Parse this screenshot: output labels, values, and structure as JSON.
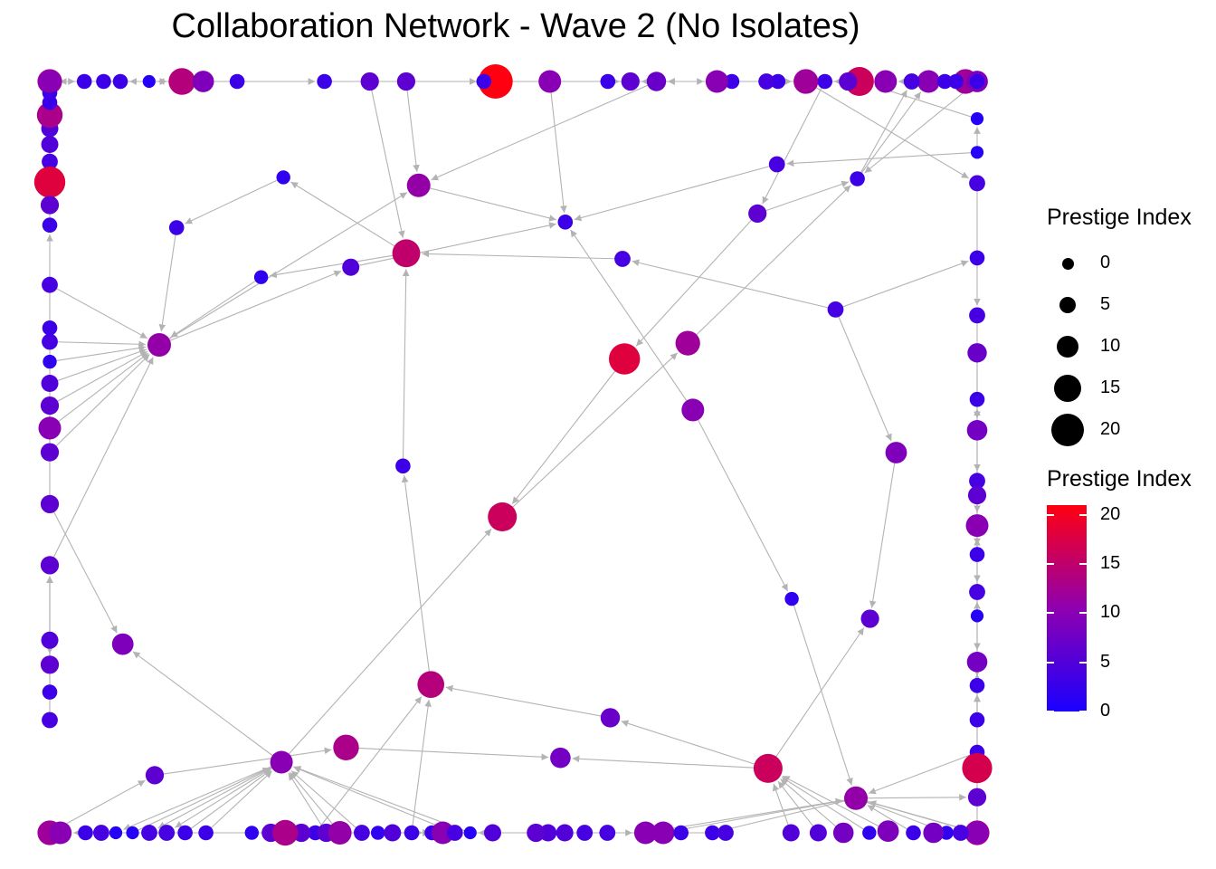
{
  "title": "Collaboration Network - Wave 2 (No Isolates)",
  "legend": {
    "size_title": "Prestige Index",
    "color_title": "Prestige Index",
    "size_entries": [
      0,
      5,
      10,
      15,
      20
    ],
    "color_ticks": [
      20,
      15,
      10,
      5,
      0
    ],
    "color_low": "#1a00ff",
    "color_mid": "#8f00b0",
    "color_high": "#ff0010"
  },
  "network": {
    "edge_color": "#b3b3b3",
    "prestige_range": [
      0,
      21
    ],
    "nodes": [
      {
        "id": 1,
        "p": 8
      },
      {
        "id": 2,
        "p": 10
      },
      {
        "id": 3,
        "p": 7
      },
      {
        "id": 4,
        "p": 1
      },
      {
        "id": 5,
        "p": 8
      },
      {
        "id": 6,
        "p": 5
      },
      {
        "id": 7,
        "p": 9
      },
      {
        "id": 8,
        "p": 5
      },
      {
        "id": 9,
        "p": 2
      },
      {
        "id": 10,
        "p": 16
      },
      {
        "id": 11,
        "p": 7
      },
      {
        "id": 12,
        "p": 6
      },
      {
        "id": 13,
        "p": 3
      },
      {
        "id": 14,
        "p": 14
      },
      {
        "id": 15,
        "p": 3
      },
      {
        "id": 16,
        "p": 9
      },
      {
        "id": 17,
        "p": 4
      },
      {
        "id": 18,
        "p": 13
      },
      {
        "id": 19,
        "p": 3
      },
      {
        "id": 20,
        "p": 4
      },
      {
        "id": 21,
        "p": 6
      },
      {
        "id": 22,
        "p": 8
      },
      {
        "id": 23,
        "p": 3
      },
      {
        "id": 24,
        "p": 3
      },
      {
        "id": 25,
        "p": 15
      },
      {
        "id": 26,
        "p": 6
      },
      {
        "id": 27,
        "p": 5
      },
      {
        "id": 28,
        "p": 2
      },
      {
        "id": 29,
        "p": 4
      },
      {
        "id": 30,
        "p": 3
      },
      {
        "id": 31,
        "p": 6
      },
      {
        "id": 32,
        "p": 4
      },
      {
        "id": 33,
        "p": 10
      },
      {
        "id": 34,
        "p": 6
      },
      {
        "id": 35,
        "p": 2
      },
      {
        "id": 36,
        "p": 6
      },
      {
        "id": 37,
        "p": 6
      },
      {
        "id": 38,
        "p": 3
      },
      {
        "id": 39,
        "p": 11
      },
      {
        "id": 40,
        "p": 2
      },
      {
        "id": 41,
        "p": 5
      },
      {
        "id": 42,
        "p": 4
      },
      {
        "id": 43,
        "p": 6
      },
      {
        "id": 44,
        "p": 11
      },
      {
        "id": 45,
        "p": 5
      },
      {
        "id": 46,
        "p": 10
      },
      {
        "id": 47,
        "p": 1
      },
      {
        "id": 48,
        "p": 1
      },
      {
        "id": 49,
        "p": 4
      },
      {
        "id": 50,
        "p": 3
      },
      {
        "id": 51,
        "p": 16
      },
      {
        "id": 52,
        "p": 7
      },
      {
        "id": 53,
        "p": 3
      },
      {
        "id": 54,
        "p": 2
      },
      {
        "id": 55,
        "p": 3
      },
      {
        "id": 56,
        "p": 8
      },
      {
        "id": 57,
        "p": 3
      },
      {
        "id": 58,
        "p": 10
      },
      {
        "id": 59,
        "p": 11
      },
      {
        "id": 60,
        "p": 10
      },
      {
        "id": 61,
        "p": 10
      },
      {
        "id": 62,
        "p": 2
      },
      {
        "id": 63,
        "p": 10
      },
      {
        "id": 64,
        "p": 3
      },
      {
        "id": 65,
        "p": 3
      },
      {
        "id": 66,
        "p": 6
      },
      {
        "id": 67,
        "p": 5
      },
      {
        "id": 68,
        "p": 5
      },
      {
        "id": 69,
        "p": 6
      },
      {
        "id": 70,
        "p": 2
      },
      {
        "id": 71,
        "p": 12
      },
      {
        "id": 72,
        "p": 6
      },
      {
        "id": 73,
        "p": 3
      },
      {
        "id": 74,
        "p": 5
      },
      {
        "id": 75,
        "p": 8
      },
      {
        "id": 76,
        "p": 4
      },
      {
        "id": 77,
        "p": 2
      },
      {
        "id": 78,
        "p": 13
      },
      {
        "id": 79,
        "p": 6
      },
      {
        "id": 80,
        "p": 3
      },
      {
        "id": 81,
        "p": 4
      },
      {
        "id": 82,
        "p": 3
      },
      {
        "id": 83,
        "p": 5
      },
      {
        "id": 84,
        "p": 5
      },
      {
        "id": 85,
        "p": 13
      },
      {
        "id": 86,
        "p": 4
      },
      {
        "id": 87,
        "p": 18
      },
      {
        "id": 88,
        "p": 6
      },
      {
        "id": 89,
        "p": 4
      },
      {
        "id": 90,
        "p": 1
      },
      {
        "id": 91,
        "p": 5
      },
      {
        "id": 92,
        "p": 4
      },
      {
        "id": 93,
        "p": 5
      },
      {
        "id": 94,
        "p": 6
      },
      {
        "id": 95,
        "p": 3
      },
      {
        "id": 96,
        "p": 10
      },
      {
        "id": 97,
        "p": 4
      },
      {
        "id": 98,
        "p": 1
      },
      {
        "id": 99,
        "p": 4
      },
      {
        "id": 100,
        "p": 3
      },
      {
        "id": 101,
        "p": 11
      },
      {
        "id": 102,
        "p": 4
      },
      {
        "id": 103,
        "p": 4
      },
      {
        "id": 104,
        "p": 1
      },
      {
        "id": 105,
        "p": 9
      },
      {
        "id": 106,
        "p": 16
      },
      {
        "id": 107,
        "p": 6
      },
      {
        "id": 108,
        "p": 3
      },
      {
        "id": 109,
        "p": 6
      },
      {
        "id": 110,
        "p": 18
      },
      {
        "id": 111,
        "p": 3
      },
      {
        "id": 112,
        "p": 3
      },
      {
        "id": 113,
        "p": 12
      },
      {
        "id": 114,
        "p": 10
      },
      {
        "id": 115,
        "p": 4
      },
      {
        "id": 116,
        "p": 3
      },
      {
        "id": 117,
        "p": 7
      },
      {
        "id": 118,
        "p": 12
      },
      {
        "id": 119,
        "p": 10
      },
      {
        "id": 120,
        "p": 6
      },
      {
        "id": 121,
        "p": 3
      },
      {
        "id": 122,
        "p": 3
      },
      {
        "id": 123,
        "p": 12
      },
      {
        "id": 124,
        "p": 4
      },
      {
        "id": 125,
        "p": 3
      },
      {
        "id": 126,
        "p": 2
      },
      {
        "id": 127,
        "p": 3
      },
      {
        "id": 128,
        "p": 3
      },
      {
        "id": 129,
        "p": 14
      },
      {
        "id": 130,
        "p": 3
      },
      {
        "id": 131,
        "p": 3
      },
      {
        "id": 132,
        "p": 10
      },
      {
        "id": 133,
        "p": 3
      },
      {
        "id": 134,
        "p": 3
      },
      {
        "id": 135,
        "p": 21
      },
      {
        "id": 136,
        "p": 6
      },
      {
        "id": 137,
        "p": 3
      },
      {
        "id": 138,
        "p": 3
      },
      {
        "id": 139,
        "p": 12
      },
      {
        "id": 140,
        "p": 4
      },
      {
        "id": 141,
        "p": 4
      },
      {
        "id": 142,
        "p": 4
      },
      {
        "id": 143,
        "p": 4
      },
      {
        "id": 144,
        "p": 3
      },
      {
        "id": 145,
        "p": 3
      },
      {
        "id": 146,
        "p": 8
      },
      {
        "id": 147,
        "p": 17
      },
      {
        "id": 148,
        "p": 10
      },
      {
        "id": 149,
        "p": 4
      },
      {
        "id": 150,
        "p": 6
      },
      {
        "id": 151,
        "p": 3
      },
      {
        "id": 152,
        "p": 3
      },
      {
        "id": 153,
        "p": 12
      },
      {
        "id": 154,
        "p": 10
      },
      {
        "id": 155,
        "p": 4
      },
      {
        "id": 156,
        "p": 3
      },
      {
        "id": 157,
        "p": 3
      },
      {
        "id": 158,
        "p": 10
      },
      {
        "id": 159,
        "p": 3
      },
      {
        "id": 160,
        "p": 9
      },
      {
        "id": 161,
        "p": 3
      },
      {
        "id": 162,
        "p": 9
      },
      {
        "id": 163,
        "p": 1
      }
    ],
    "edges": [
      [
        1,
        2
      ],
      [
        4,
        2
      ],
      [
        5,
        10
      ],
      [
        6,
        10
      ],
      [
        7,
        10
      ],
      [
        9,
        10
      ],
      [
        10,
        12
      ],
      [
        10,
        22
      ],
      [
        10,
        11
      ],
      [
        11,
        14
      ],
      [
        13,
        14
      ],
      [
        14,
        23
      ],
      [
        17,
        16
      ],
      [
        17,
        20
      ],
      [
        17,
        15
      ],
      [
        19,
        26
      ],
      [
        20,
        25
      ],
      [
        21,
        25
      ],
      [
        23,
        25
      ],
      [
        24,
        14
      ],
      [
        25,
        35
      ],
      [
        25,
        28
      ],
      [
        26,
        18
      ],
      [
        27,
        31
      ],
      [
        30,
        34
      ],
      [
        31,
        34
      ],
      [
        32,
        34
      ],
      [
        33,
        39
      ],
      [
        33,
        36
      ],
      [
        33,
        37
      ],
      [
        34,
        39
      ],
      [
        35,
        38
      ],
      [
        36,
        39
      ],
      [
        37,
        39
      ],
      [
        38,
        39
      ],
      [
        39,
        45
      ],
      [
        39,
        44
      ],
      [
        40,
        39
      ],
      [
        41,
        39
      ],
      [
        42,
        39
      ],
      [
        44,
        50
      ],
      [
        45,
        50
      ],
      [
        46,
        50
      ],
      [
        48,
        49
      ],
      [
        48,
        47
      ],
      [
        49,
        50
      ],
      [
        52,
        44
      ],
      [
        53,
        52
      ],
      [
        54,
        55
      ],
      [
        55,
        58
      ],
      [
        56,
        59
      ],
      [
        57,
        59
      ],
      [
        58,
        59
      ],
      [
        59,
        61
      ],
      [
        60,
        62
      ],
      [
        61,
        63
      ],
      [
        62,
        59
      ],
      [
        64,
        59
      ],
      [
        65,
        59
      ],
      [
        66,
        63
      ],
      [
        67,
        63
      ],
      [
        59,
        68
      ],
      [
        59,
        70
      ],
      [
        59,
        71
      ],
      [
        59,
        72
      ],
      [
        59,
        73
      ],
      [
        70,
        75
      ],
      [
        73,
        74
      ],
      [
        76,
        74
      ],
      [
        77,
        63
      ],
      [
        78,
        63
      ],
      [
        79,
        63
      ],
      [
        80,
        78
      ],
      [
        81,
        78
      ],
      [
        82,
        79
      ],
      [
        85,
        86
      ],
      [
        85,
        83
      ],
      [
        84,
        83
      ],
      [
        86,
        87
      ],
      [
        87,
        83
      ],
      [
        87,
        88
      ],
      [
        89,
        90
      ],
      [
        90,
        96
      ],
      [
        91,
        92
      ],
      [
        92,
        96
      ],
      [
        93,
        94
      ],
      [
        94,
        96
      ],
      [
        95,
        96
      ],
      [
        97,
        96
      ],
      [
        98,
        96
      ],
      [
        96,
        103
      ],
      [
        96,
        102
      ],
      [
        96,
        104
      ],
      [
        96,
        105
      ],
      [
        96,
        106
      ],
      [
        101,
        96
      ],
      [
        107,
        108
      ],
      [
        108,
        109
      ],
      [
        109,
        110
      ],
      [
        109,
        111
      ],
      [
        112,
        111
      ],
      [
        111,
        114
      ],
      [
        113,
        111
      ],
      [
        111,
        115
      ],
      [
        114,
        116
      ],
      [
        117,
        118
      ],
      [
        119,
        118
      ],
      [
        120,
        121
      ],
      [
        121,
        122
      ],
      [
        122,
        123
      ],
      [
        123,
        124
      ],
      [
        125,
        124
      ],
      [
        126,
        124
      ],
      [
        126,
        127
      ],
      [
        128,
        129
      ],
      [
        129,
        134
      ],
      [
        130,
        129
      ],
      [
        131,
        129
      ],
      [
        132,
        131
      ],
      [
        133,
        132
      ],
      [
        134,
        135
      ],
      [
        135,
        136
      ],
      [
        137,
        136
      ],
      [
        138,
        136
      ],
      [
        136,
        139
      ],
      [
        139,
        140
      ],
      [
        140,
        141
      ],
      [
        141,
        142
      ],
      [
        142,
        143
      ],
      [
        143,
        144
      ],
      [
        145,
        144
      ],
      [
        146,
        143
      ],
      [
        147,
        146
      ],
      [
        148,
        146
      ],
      [
        149,
        148
      ],
      [
        150,
        151
      ],
      [
        150,
        152
      ],
      [
        153,
        154
      ],
      [
        155,
        154
      ],
      [
        156,
        154
      ],
      [
        157,
        158
      ],
      [
        158,
        154
      ],
      [
        159,
        154
      ],
      [
        160,
        154
      ],
      [
        161,
        160
      ],
      [
        162,
        163
      ],
      [
        163,
        125
      ],
      [
        99,
        97
      ],
      [
        100,
        96
      ],
      [
        3,
        1
      ],
      [
        8,
        10
      ],
      [
        16,
        12
      ],
      [
        18,
        22
      ],
      [
        28,
        39
      ],
      [
        29,
        39
      ],
      [
        43,
        44
      ],
      [
        47,
        51
      ],
      [
        51,
        52
      ],
      [
        60,
        50
      ],
      [
        69,
        63
      ],
      [
        74,
        78
      ],
      [
        104,
        119
      ],
      [
        118,
        119
      ],
      [
        106,
        113
      ],
      [
        110,
        106
      ],
      [
        115,
        116
      ],
      [
        120,
        105
      ],
      [
        142,
        146
      ],
      [
        138,
        139
      ],
      [
        145,
        144
      ]
    ]
  }
}
